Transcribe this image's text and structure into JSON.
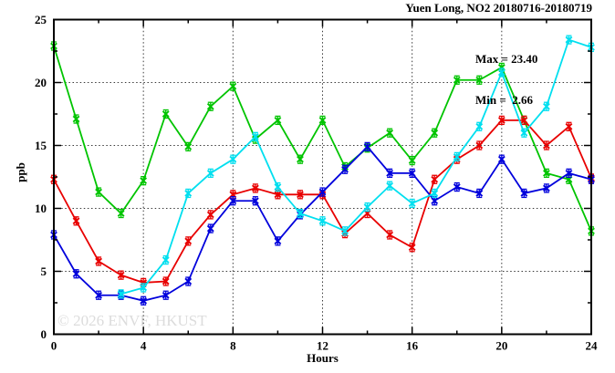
{
  "figure": {
    "background": "#ffffff"
  },
  "chart_data": {
    "type": "line",
    "title": "Yuen Long, NO2 20180716-20180719",
    "annotations": {
      "max": "Max = 23.40",
      "min": "Min =  2.66"
    },
    "xlabel": "Hours",
    "ylabel": "ppb",
    "watermark": "© 2026 ENVF, HKUST",
    "xlim": [
      0,
      24
    ],
    "ylim": [
      0,
      25
    ],
    "x_major_ticks": [
      0,
      4,
      8,
      12,
      16,
      20,
      24
    ],
    "x_minor_tick_step": 2,
    "y_major_ticks": [
      0,
      5,
      10,
      15,
      20,
      25
    ],
    "y_minor_tick_step": 2.5,
    "grid": "dotted-at-major-ticks",
    "legend_position": "none",
    "marker_style": "x-with-error-bar",
    "frame_color": "#000000",
    "series": [
      {
        "name": "day-20180716-green",
        "color": "#00C400",
        "x": [
          0,
          1,
          2,
          3,
          4,
          5,
          6,
          7,
          8,
          9,
          10,
          11,
          12,
          13,
          14,
          15,
          16,
          17,
          18,
          19,
          20,
          21,
          22,
          23,
          24
        ],
        "y": [
          22.9,
          17.1,
          11.3,
          9.6,
          12.2,
          17.5,
          14.9,
          18.1,
          19.7,
          15.5,
          17.0,
          13.9,
          17.0,
          13.3,
          14.8,
          16.0,
          13.8,
          16.0,
          20.2,
          20.2,
          21.2,
          17.0,
          12.8,
          12.3,
          8.2
        ]
      },
      {
        "name": "day-20180717-red",
        "color": "#E80000",
        "x": [
          0,
          1,
          2,
          3,
          4,
          5,
          6,
          7,
          8,
          9,
          10,
          11,
          12,
          13,
          14,
          15,
          16,
          17,
          18,
          19,
          20,
          21,
          22,
          23,
          24
        ],
        "y": [
          12.3,
          9.0,
          5.8,
          4.7,
          4.1,
          4.2,
          7.4,
          9.5,
          11.1,
          11.6,
          11.1,
          11.1,
          11.1,
          8.0,
          9.6,
          7.9,
          6.9,
          12.3,
          13.9,
          15.0,
          17.0,
          17.0,
          15.0,
          16.5,
          12.4
        ]
      },
      {
        "name": "day-20180718-blue",
        "color": "#0000DC",
        "x": [
          0,
          1,
          2,
          3,
          4,
          5,
          6,
          7,
          8,
          9,
          10,
          11,
          12,
          13,
          14,
          15,
          16,
          17,
          18,
          19,
          20,
          21,
          22,
          23,
          24
        ],
        "y": [
          7.9,
          4.8,
          3.1,
          3.1,
          2.66,
          3.1,
          4.2,
          8.4,
          10.6,
          10.6,
          7.4,
          9.5,
          11.3,
          13.1,
          14.9,
          12.8,
          12.8,
          10.6,
          11.7,
          11.2,
          13.9,
          11.2,
          11.6,
          12.8,
          12.3
        ]
      },
      {
        "name": "day-20180719-cyan",
        "color": "#00DFEF",
        "x": [
          3,
          4,
          5,
          6,
          7,
          8,
          9,
          10,
          11,
          12,
          13,
          14,
          15,
          16,
          17,
          18,
          19,
          20,
          21,
          22,
          23,
          24
        ],
        "y": [
          3.2,
          3.7,
          5.9,
          11.2,
          12.8,
          13.9,
          15.7,
          11.7,
          9.6,
          9.0,
          8.2,
          10.1,
          11.8,
          10.4,
          11.2,
          14.1,
          16.5,
          20.8,
          16.0,
          18.1,
          23.4,
          22.8
        ]
      }
    ]
  }
}
